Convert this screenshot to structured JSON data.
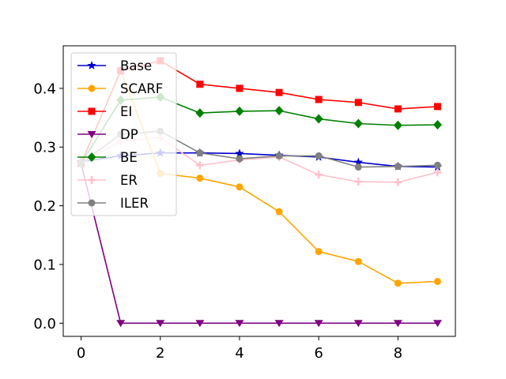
{
  "chart_data": {
    "type": "line",
    "title": "",
    "xlabel": "",
    "ylabel": "",
    "x": [
      0,
      1,
      2,
      3,
      4,
      5,
      6,
      7,
      8,
      9
    ],
    "xlim": [
      -0.45,
      9.45
    ],
    "ylim": [
      -0.0225,
      0.4725
    ],
    "xticks": [
      0,
      2,
      4,
      6,
      8
    ],
    "xtick_labels": [
      "0",
      "2",
      "4",
      "6",
      "8"
    ],
    "yticks": [
      0.0,
      0.1,
      0.2,
      0.3,
      0.4
    ],
    "ytick_labels": [
      "0.0",
      "0.1",
      "0.2",
      "0.3",
      "0.4"
    ],
    "grid": false,
    "legend_position": "upper-left",
    "series": [
      {
        "name": "Base",
        "color": "#0000cc",
        "marker": "star",
        "values": [
          0.275,
          0.285,
          0.29,
          0.29,
          0.289,
          0.286,
          0.283,
          0.274,
          0.267,
          0.266
        ]
      },
      {
        "name": "SCARF",
        "color": "#ffa500",
        "marker": "circle",
        "values": [
          0.272,
          0.43,
          0.255,
          0.247,
          0.232,
          0.19,
          0.122,
          0.105,
          0.068,
          0.071
        ]
      },
      {
        "name": "EI",
        "color": "#ff0000",
        "marker": "square",
        "values": [
          0.272,
          0.43,
          0.447,
          0.407,
          0.4,
          0.393,
          0.381,
          0.376,
          0.365,
          0.369
        ]
      },
      {
        "name": "DP",
        "color": "#800080",
        "marker": "triangle-down",
        "values": [
          0.272,
          0.0,
          0.0,
          0.0,
          0.0,
          0.0,
          0.0,
          0.0,
          0.0,
          0.0
        ]
      },
      {
        "name": "BE",
        "color": "#008000",
        "marker": "diamond",
        "values": [
          0.272,
          0.38,
          0.385,
          0.358,
          0.361,
          0.362,
          0.348,
          0.34,
          0.337,
          0.338
        ]
      },
      {
        "name": "ER",
        "color": "#ffc0cb",
        "marker": "plus",
        "values": [
          0.272,
          0.31,
          0.316,
          0.269,
          0.278,
          0.283,
          0.253,
          0.241,
          0.24,
          0.257
        ]
      },
      {
        "name": "ILER",
        "color": "#808080",
        "marker": "circle",
        "values": [
          0.272,
          0.322,
          0.327,
          0.29,
          0.28,
          0.285,
          0.285,
          0.266,
          0.267,
          0.269
        ]
      }
    ]
  }
}
